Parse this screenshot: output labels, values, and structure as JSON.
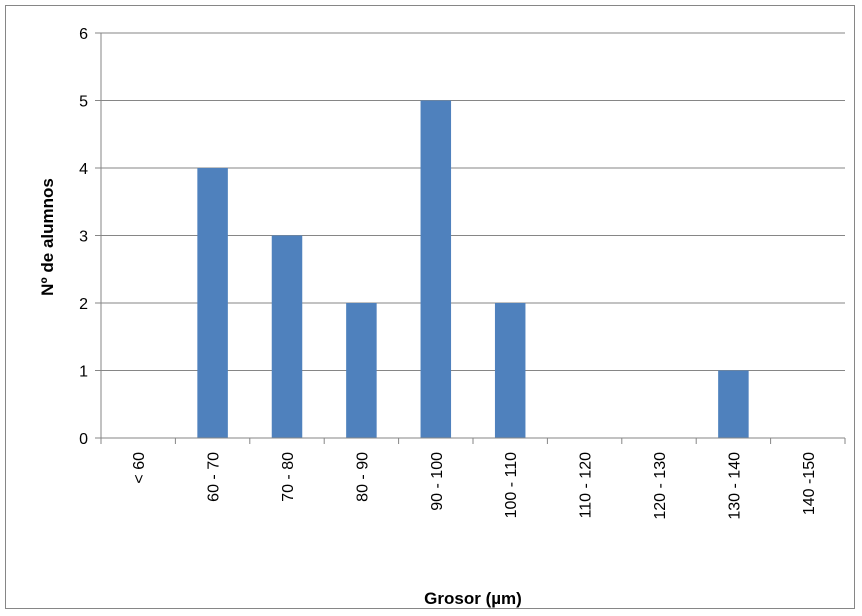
{
  "chart_data": {
    "type": "bar",
    "title": "",
    "xlabel": "Grosor (µm)",
    "ylabel": "Nº de alumnos",
    "categories": [
      "< 60",
      "60 - 70",
      "70 - 80",
      "80 - 90",
      "90 - 100",
      "100 - 110",
      "110 - 120",
      "120 - 130",
      "130 - 140",
      "140 -150"
    ],
    "values": [
      0,
      4,
      3,
      2,
      5,
      2,
      0,
      0,
      1,
      0
    ],
    "ylim": [
      0,
      6
    ],
    "yticks": [
      "0",
      "1",
      "2",
      "3",
      "4",
      "5",
      "6"
    ],
    "grid": true,
    "legend": "none",
    "bar_color": "#4F81BD"
  }
}
